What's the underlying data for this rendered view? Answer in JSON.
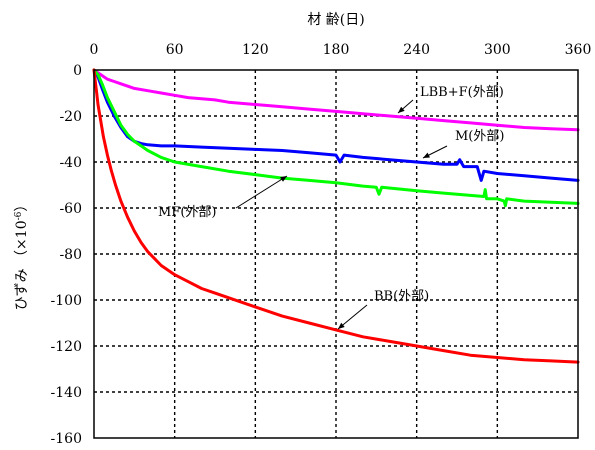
{
  "chart_data": {
    "type": "line",
    "xlabel": "材 齢(日)",
    "ylabel": "ひずみ （×10",
    "ylabel_exp": "-6",
    "ylabel_close": "）",
    "xlim": [
      0,
      360
    ],
    "ylim": [
      -160,
      0
    ],
    "x_ticks": [
      0,
      60,
      120,
      180,
      240,
      300,
      360
    ],
    "y_ticks": [
      0,
      -20,
      -40,
      -60,
      -80,
      -100,
      -120,
      -140,
      -160
    ],
    "x_tick_labels": [
      "0",
      "60",
      "120",
      "180",
      "240",
      "300",
      "360"
    ],
    "y_tick_labels": [
      "0",
      "-20",
      "-40",
      "-60",
      "-80",
      "-100",
      "-120",
      "-140",
      "-160"
    ],
    "grid": true,
    "series": [
      {
        "name": "LBB+F(外部)",
        "color": "#ff00ff",
        "x": [
          0,
          5,
          10,
          15,
          20,
          30,
          40,
          50,
          60,
          70,
          80,
          90,
          100,
          120,
          140,
          160,
          180,
          200,
          220,
          240,
          260,
          280,
          300,
          320,
          340,
          360
        ],
        "y": [
          0,
          -2,
          -4,
          -5,
          -6,
          -8,
          -9,
          -10,
          -11,
          -12,
          -12.5,
          -13,
          -14,
          -15,
          -16,
          -17,
          -18,
          -19,
          -20,
          -21,
          -22,
          -23,
          -24,
          -25,
          -25.5,
          -26
        ]
      },
      {
        "name": "M(外部)",
        "color": "#0000ff",
        "x": [
          0,
          3,
          6,
          10,
          15,
          20,
          25,
          30,
          35,
          40,
          50,
          60,
          80,
          100,
          120,
          140,
          150,
          160,
          180,
          183,
          186,
          200,
          220,
          240,
          260,
          270,
          272,
          275,
          280,
          285,
          288,
          290,
          300,
          320,
          340,
          360
        ],
        "y": [
          0,
          -3,
          -8,
          -14,
          -20,
          -25,
          -29,
          -31,
          -32,
          -32.5,
          -33,
          -33,
          -33.5,
          -34,
          -34.5,
          -35,
          -35.5,
          -36,
          -37,
          -40,
          -37,
          -38,
          -39,
          -40,
          -41,
          -41,
          -39,
          -42,
          -42,
          -42,
          -48,
          -44,
          -45,
          -46,
          -47,
          -48
        ]
      },
      {
        "name": "MF(外部)",
        "color": "#00ff00",
        "x": [
          0,
          3,
          6,
          10,
          15,
          20,
          25,
          30,
          35,
          40,
          50,
          60,
          80,
          100,
          120,
          140,
          160,
          180,
          200,
          210,
          212,
          214,
          240,
          260,
          280,
          290,
          291,
          292,
          300,
          305,
          306,
          307,
          320,
          340,
          360
        ],
        "y": [
          0,
          -2,
          -6,
          -12,
          -18,
          -24,
          -28,
          -31,
          -33,
          -35,
          -38,
          -40,
          -42,
          -44,
          -45.5,
          -47,
          -48,
          -49,
          -50.5,
          -51,
          -54,
          -51,
          -52.5,
          -53.5,
          -54.5,
          -55,
          -52,
          -56,
          -56,
          -57,
          -59,
          -56,
          -57,
          -57.5,
          -58
        ]
      },
      {
        "name": "BB(外部)",
        "color": "#ff0000",
        "x": [
          0,
          1,
          2,
          3,
          5,
          7,
          10,
          13,
          16,
          20,
          25,
          30,
          35,
          40,
          45,
          50,
          60,
          70,
          80,
          90,
          100,
          120,
          140,
          160,
          180,
          200,
          220,
          240,
          260,
          280,
          300,
          320,
          340,
          360
        ],
        "y": [
          0,
          -5,
          -10,
          -15,
          -22,
          -29,
          -37,
          -44,
          -50,
          -57,
          -64,
          -70,
          -75,
          -79,
          -82,
          -85,
          -89,
          -92,
          -95,
          -97,
          -99,
          -103,
          -107,
          -110,
          -113,
          -116,
          -118,
          -120,
          -122,
          -124,
          -125,
          -126,
          -126.5,
          -127
        ]
      }
    ],
    "annotations": [
      {
        "text": "LBB+F(外部)",
        "series": 0,
        "x": 224,
        "y": -18
      },
      {
        "text": "M(外部)",
        "series": 1,
        "x": 245,
        "y": -38
      },
      {
        "text": "MF(外部)",
        "series": 2,
        "x": 140,
        "y": -47
      },
      {
        "text": "BB(外部)",
        "series": 3,
        "x": 180,
        "y": -113
      }
    ]
  }
}
